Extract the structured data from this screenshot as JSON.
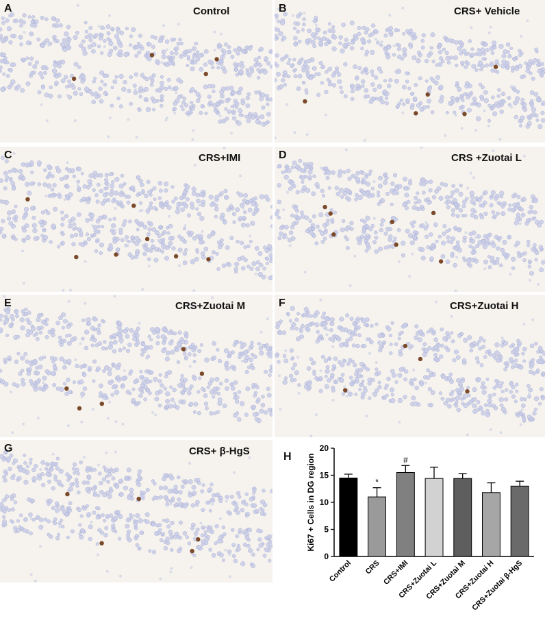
{
  "panels": [
    {
      "label": "A",
      "title": "Control"
    },
    {
      "label": "B",
      "title": "CRS+ Vehicle"
    },
    {
      "label": "C",
      "title": "CRS+IMI"
    },
    {
      "label": "D",
      "title": "CRS +Zuotai L"
    },
    {
      "label": "E",
      "title": "CRS+Zuotai M"
    },
    {
      "label": "F",
      "title": "CRS+Zuotai H"
    },
    {
      "label": "G",
      "title": "CRS+ β-HgS"
    }
  ],
  "chart_panel_label": "H",
  "chart_data": {
    "type": "bar",
    "categories": [
      "Control",
      "CRS",
      "CRS+IMI",
      "CRS+Zuotai L",
      "CRS+Zuotai M",
      "CRS+Zuotai H",
      "CRS+Zuotai β-HgS"
    ],
    "values": [
      14.5,
      11.0,
      15.5,
      14.4,
      14.4,
      11.8,
      13.0
    ],
    "errors": [
      0.7,
      1.7,
      1.3,
      2.1,
      0.9,
      1.8,
      0.9
    ],
    "annotations": [
      "",
      "*",
      "#",
      "",
      "",
      "",
      ""
    ],
    "ylabel": "Ki67 + Cells in DG region",
    "xlabel": "",
    "ylim": [
      0,
      20
    ],
    "yticks": [
      "0",
      "5",
      "10",
      "15",
      "20"
    ],
    "bar_colors": [
      "#000000",
      "#9a9a9a",
      "#808080",
      "#d2d2d2",
      "#5e5e5e",
      "#a6a6a6",
      "#6a6a6a"
    ]
  }
}
